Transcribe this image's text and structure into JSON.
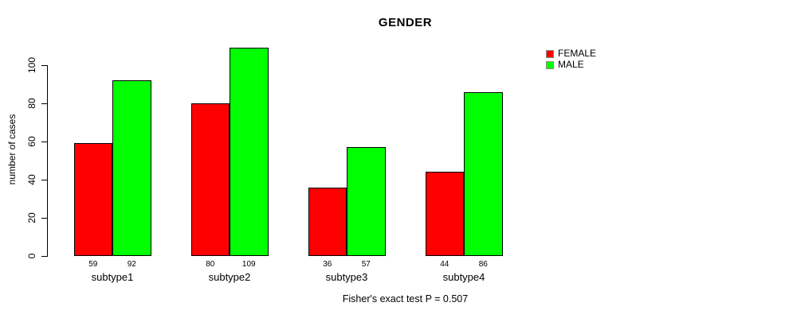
{
  "chart_data": {
    "type": "bar",
    "title": "GENDER",
    "xlabel": "",
    "ylabel": "number of cases",
    "categories": [
      "subtype1",
      "subtype2",
      "subtype3",
      "subtype4"
    ],
    "series": [
      {
        "name": "FEMALE",
        "color": "#ff0000",
        "values": [
          59,
          80,
          36,
          44
        ]
      },
      {
        "name": "MALE",
        "color": "#00ff00",
        "values": [
          92,
          109,
          57,
          86
        ]
      }
    ],
    "yticks": [
      0,
      20,
      40,
      60,
      80,
      100
    ],
    "ylim": [
      0,
      110
    ],
    "grid": false,
    "legend_position": "top-right",
    "bar_value_labels_shown": true,
    "footnote": "Fisher's exact test P = 0.507"
  }
}
